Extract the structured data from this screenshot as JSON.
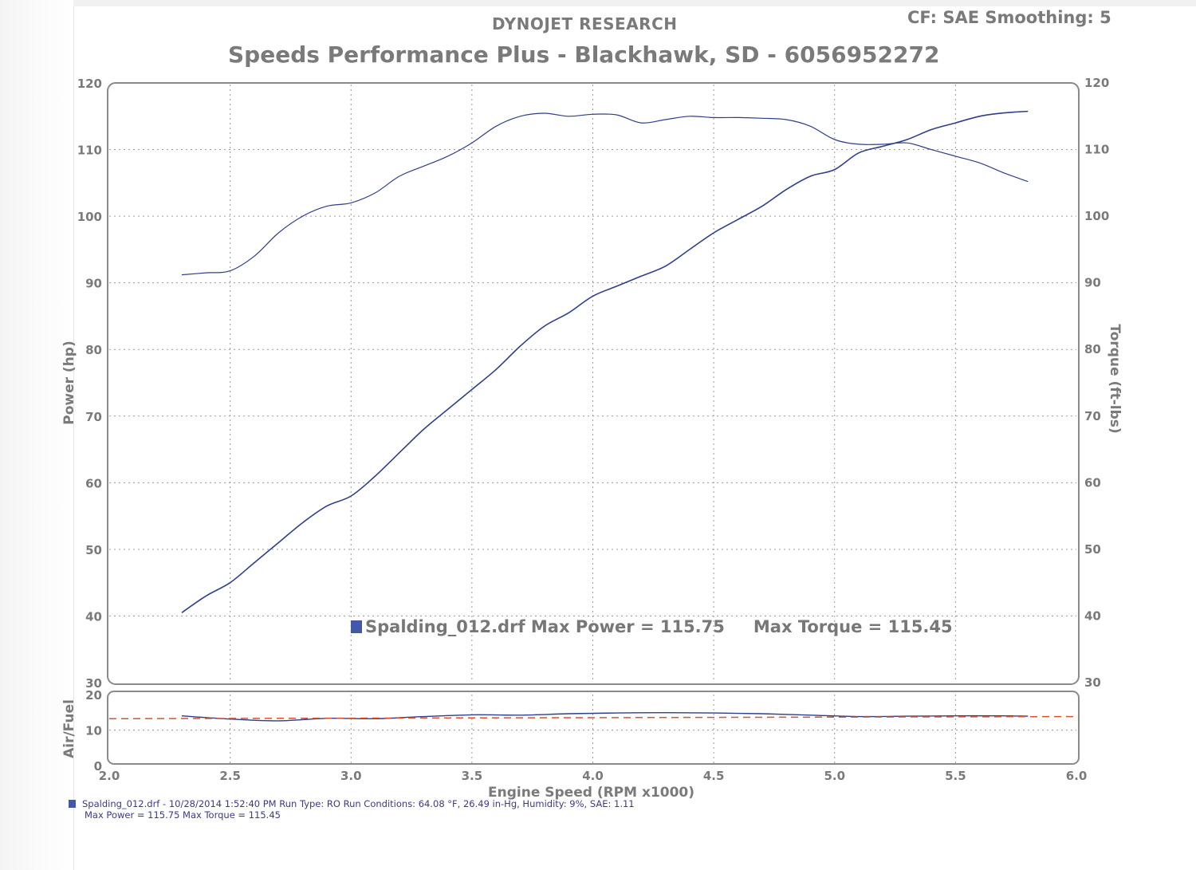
{
  "header": {
    "brand": "DYNOJET RESEARCH",
    "cf_smoothing": "CF: SAE  Smoothing: 5",
    "title": "Speeds Performance Plus - Blackhawk, SD - 6056952272"
  },
  "legend": {
    "file": "Spalding_012.drf",
    "max_power_text": "Max Power = 115.75",
    "max_torque_text": "Max Torque = 115.45"
  },
  "footer": {
    "line1": "Spalding_012.drf - 10/28/2014 1:52:40 PM  Run Type: RO  Run Conditions: 64.08 °F, 26.49 in-Hg,  Humidity:  9%, SAE: 1.11",
    "line2": "Max Power = 115.75  Max Torque = 115.45"
  },
  "colors": {
    "curve": "#2e3f8c",
    "target_line": "#d9542c",
    "grid": "#9a9a9a",
    "label": "#7a7a7a"
  },
  "chart_data": [
    {
      "type": "line",
      "xlabel": "Engine Speed (RPM x1000)",
      "ylabel_left": "Power (hp)",
      "ylabel_right": "Torque (ft-lbs)",
      "xlim": [
        2.0,
        6.0
      ],
      "xticks": [
        "2.0",
        "2.5",
        "3.0",
        "3.5",
        "4.0",
        "4.5",
        "5.0",
        "5.5",
        "6.0"
      ],
      "ylim": [
        30,
        120
      ],
      "yticks_left": [
        "30",
        "40",
        "50",
        "60",
        "70",
        "80",
        "90",
        "100",
        "110",
        "120"
      ],
      "yticks_right": [
        "30",
        "40",
        "50",
        "60",
        "70",
        "80",
        "90",
        "100",
        "110",
        "120"
      ],
      "grid": true,
      "series": [
        {
          "axis": "left",
          "x": [
            2.3,
            2.4,
            2.5,
            2.6,
            2.7,
            2.8,
            2.9,
            3.0,
            3.1,
            3.2,
            3.3,
            3.4,
            3.5,
            3.6,
            3.7,
            3.8,
            3.9,
            4.0,
            4.1,
            4.2,
            4.3,
            4.4,
            4.5,
            4.6,
            4.7,
            4.8,
            4.9,
            5.0,
            5.1,
            5.2,
            5.3,
            5.4,
            5.5,
            5.6,
            5.7,
            5.8
          ],
          "y": [
            40.5,
            43.0,
            45.0,
            48.0,
            51.0,
            54.0,
            56.5,
            58.0,
            61.0,
            64.5,
            68.0,
            71.0,
            74.0,
            77.0,
            80.5,
            83.5,
            85.5,
            88.0,
            89.5,
            91.0,
            92.5,
            95.0,
            97.5,
            99.5,
            101.5,
            104.0,
            106.0,
            107.0,
            109.5,
            110.5,
            111.5,
            113.0,
            114.0,
            115.0,
            115.5,
            115.75
          ]
        },
        {
          "axis": "right",
          "x": [
            2.3,
            2.4,
            2.5,
            2.6,
            2.7,
            2.8,
            2.9,
            3.0,
            3.1,
            3.2,
            3.3,
            3.4,
            3.5,
            3.6,
            3.7,
            3.8,
            3.9,
            4.0,
            4.1,
            4.2,
            4.3,
            4.4,
            4.5,
            4.6,
            4.7,
            4.8,
            4.9,
            5.0,
            5.1,
            5.2,
            5.3,
            5.4,
            5.5,
            5.6,
            5.7,
            5.8
          ],
          "y": [
            91.2,
            91.5,
            91.8,
            94.0,
            97.5,
            100.0,
            101.5,
            102.0,
            103.5,
            106.0,
            107.5,
            109.0,
            111.0,
            113.5,
            115.0,
            115.45,
            115.0,
            115.3,
            115.2,
            114.0,
            114.5,
            115.0,
            114.8,
            114.8,
            114.7,
            114.5,
            113.5,
            111.5,
            110.8,
            110.8,
            111.0,
            110.0,
            109.0,
            108.0,
            106.5,
            105.2
          ]
        }
      ]
    },
    {
      "type": "line",
      "ylabel": "Air/Fuel",
      "xlim": [
        2.0,
        6.0
      ],
      "ylim": [
        0,
        20
      ],
      "yticks": [
        "0",
        "10",
        "20"
      ],
      "grid": true,
      "series": [
        {
          "x": [
            2.3,
            2.5,
            2.7,
            2.9,
            3.1,
            3.3,
            3.5,
            3.7,
            3.9,
            4.1,
            4.3,
            4.5,
            4.7,
            4.9,
            5.1,
            5.3,
            5.5,
            5.7,
            5.8
          ],
          "y": [
            14.0,
            13.1,
            12.6,
            13.3,
            13.2,
            13.8,
            14.3,
            14.2,
            14.6,
            14.8,
            14.9,
            14.8,
            14.6,
            14.2,
            13.8,
            13.9,
            14.0,
            14.0,
            13.9
          ]
        },
        {
          "style": "dashed",
          "x": [
            2.0,
            6.0
          ],
          "y": [
            13.2,
            13.8
          ]
        }
      ]
    }
  ]
}
